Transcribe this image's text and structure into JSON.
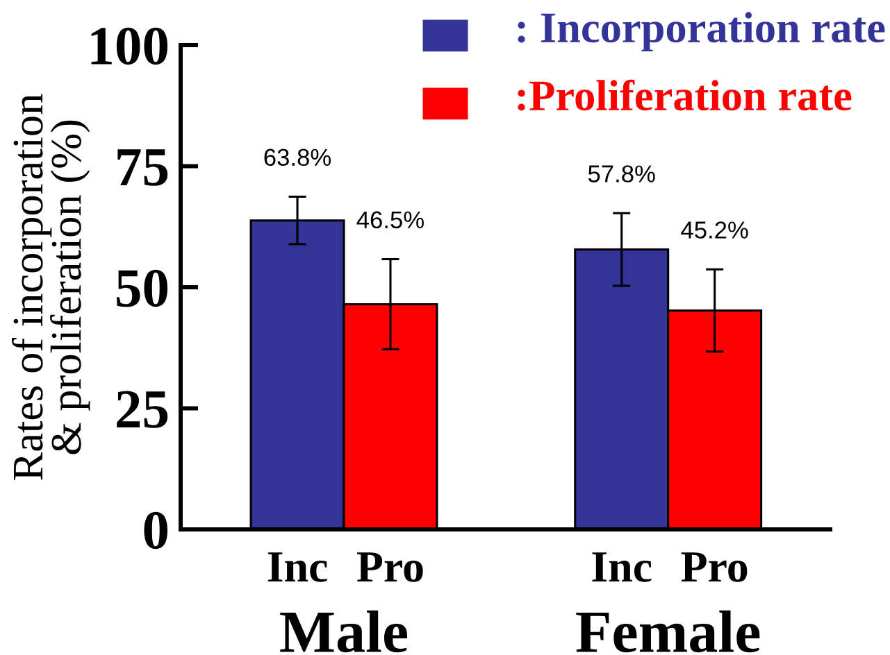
{
  "chart_data": {
    "type": "bar",
    "categories": [
      "Male",
      "Female"
    ],
    "ylabel": "Rates of incorporation\n& proliferation (%)",
    "ylim": [
      0,
      100
    ],
    "yticks": [
      0,
      25,
      50,
      75,
      100
    ],
    "legend": "top right",
    "annotations": [
      "Inc",
      "Pro",
      "Inc",
      "Pro"
    ],
    "series": [
      {
        "name": ": Incorporation rate",
        "color": "#333399",
        "values": [
          63.8,
          57.8
        ],
        "errors": [
          4.9,
          7.5
        ],
        "value_labels": [
          "63.8%",
          "57.8%"
        ]
      },
      {
        "name": ":Proliferation rate",
        "color": "#ff0000",
        "values": [
          46.5,
          45.2
        ],
        "errors": [
          9.3,
          8.5
        ],
        "value_labels": [
          "46.5%",
          "45.2%"
        ]
      }
    ]
  }
}
